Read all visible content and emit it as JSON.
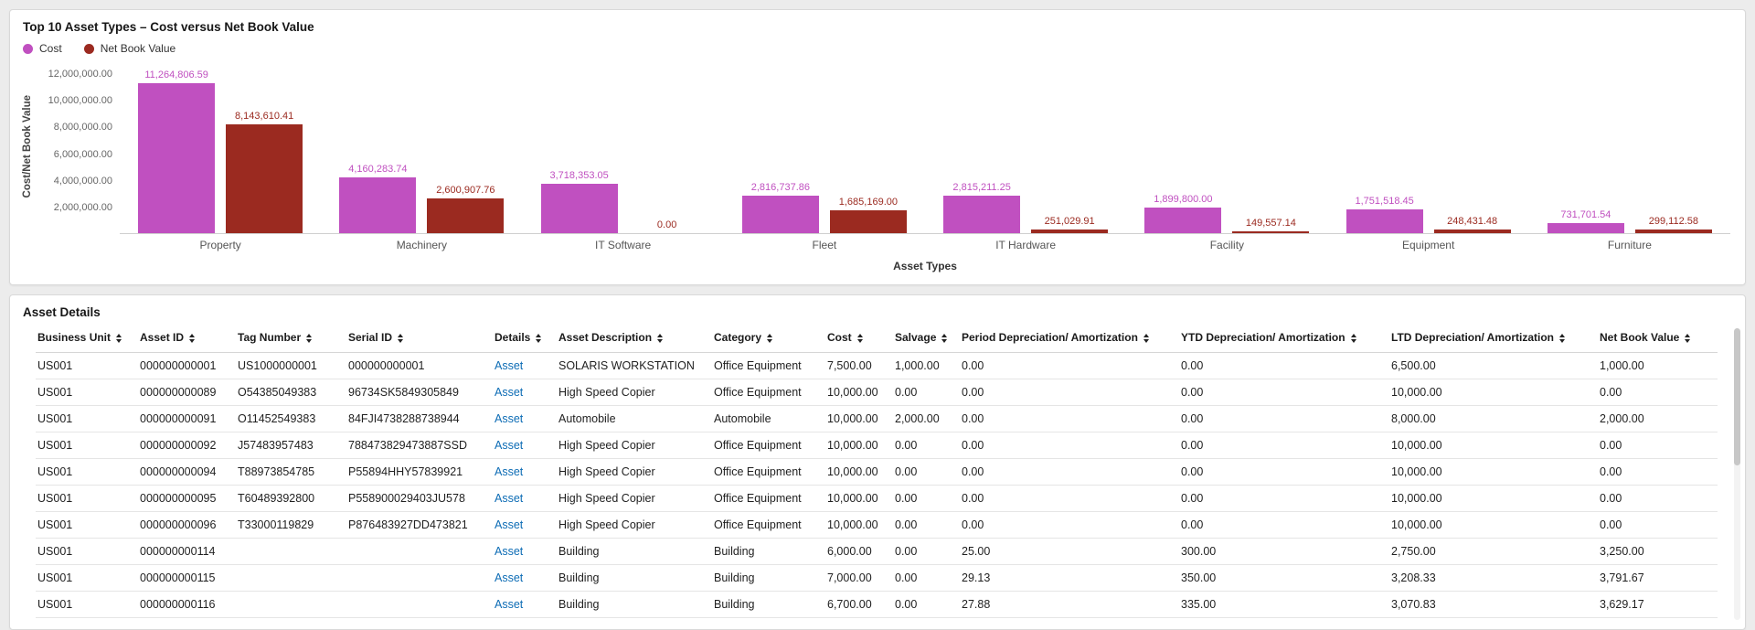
{
  "chart_panel": {
    "title": "Top 10 Asset Types – Cost versus Net Book Value",
    "legend": [
      {
        "label": "Cost",
        "color": "#c050c0"
      },
      {
        "label": "Net Book Value",
        "color": "#9b2a20"
      }
    ],
    "chart_data": {
      "type": "bar",
      "title": "Top 10 Asset Types – Cost versus Net Book Value",
      "xlabel": "Asset Types",
      "ylabel": "Cost/Net Book Value",
      "ylim": [
        0,
        12000000
      ],
      "grid": false,
      "legend_position": "top-left",
      "ytick_values": [
        12000000,
        10000000,
        8000000,
        6000000,
        4000000,
        2000000
      ],
      "ytick_labels": [
        "12,000,000.00",
        "10,000,000.00",
        "8,000,000.00",
        "6,000,000.00",
        "4,000,000.00",
        "2,000,000.00"
      ],
      "categories": [
        "Property",
        "Machinery",
        "IT Software",
        "Fleet",
        "IT Hardware",
        "Facility",
        "Equipment",
        "Furniture"
      ],
      "series": [
        {
          "name": "Cost",
          "color": "#c050c0",
          "values": [
            11264806.59,
            4160283.74,
            3718353.05,
            2816737.86,
            2815211.25,
            1899800.0,
            1751518.45,
            731701.54
          ],
          "labels": [
            "11,264,806.59",
            "4,160,283.74",
            "3,718,353.05",
            "2,816,737.86",
            "2,815,211.25",
            "1,899,800.00",
            "1,751,518.45",
            "731,701.54"
          ]
        },
        {
          "name": "Net Book Value",
          "color": "#9b2a20",
          "values": [
            8143610.41,
            2600907.76,
            0.0,
            1685169.0,
            251029.91,
            149557.14,
            248431.48,
            299112.58
          ],
          "labels": [
            "8,143,610.41",
            "2,600,907.76",
            "0.00",
            "1,685,169.00",
            "251,029.91",
            "149,557.14",
            "248,431.48",
            "299,112.58"
          ]
        }
      ]
    }
  },
  "table_panel": {
    "title": "Asset Details",
    "columns": [
      "Business Unit",
      "Asset ID",
      "Tag Number",
      "Serial ID",
      "Details",
      "Asset Description",
      "Category",
      "Cost",
      "Salvage",
      "Period Depreciation/ Amortization",
      "YTD Depreciation/ Amortization",
      "LTD Depreciation/ Amortization",
      "Net Book Value"
    ],
    "link_column_index": 4,
    "rows": [
      [
        "US001",
        "000000000001",
        "US1000000001",
        "000000000001",
        "Asset",
        "SOLARIS WORKSTATION",
        "Office Equipment",
        "7,500.00",
        "1,000.00",
        "0.00",
        "0.00",
        "6,500.00",
        "1,000.00"
      ],
      [
        "US001",
        "000000000089",
        "O54385049383",
        "96734SK5849305849",
        "Asset",
        "High Speed Copier",
        "Office Equipment",
        "10,000.00",
        "0.00",
        "0.00",
        "0.00",
        "10,000.00",
        "0.00"
      ],
      [
        "US001",
        "000000000091",
        "O11452549383",
        "84FJI4738288738944",
        "Asset",
        "Automobile",
        "Automobile",
        "10,000.00",
        "2,000.00",
        "0.00",
        "0.00",
        "8,000.00",
        "2,000.00"
      ],
      [
        "US001",
        "000000000092",
        "J57483957483",
        "788473829473887SSD",
        "Asset",
        "High Speed Copier",
        "Office Equipment",
        "10,000.00",
        "0.00",
        "0.00",
        "0.00",
        "10,000.00",
        "0.00"
      ],
      [
        "US001",
        "000000000094",
        "T88973854785",
        "P55894HHY57839921",
        "Asset",
        "High Speed Copier",
        "Office Equipment",
        "10,000.00",
        "0.00",
        "0.00",
        "0.00",
        "10,000.00",
        "0.00"
      ],
      [
        "US001",
        "000000000095",
        "T60489392800",
        "P558900029403JU578",
        "Asset",
        "High Speed Copier",
        "Office Equipment",
        "10,000.00",
        "0.00",
        "0.00",
        "0.00",
        "10,000.00",
        "0.00"
      ],
      [
        "US001",
        "000000000096",
        "T33000119829",
        "P876483927DD473821",
        "Asset",
        "High Speed Copier",
        "Office Equipment",
        "10,000.00",
        "0.00",
        "0.00",
        "0.00",
        "10,000.00",
        "0.00"
      ],
      [
        "US001",
        "000000000114",
        "",
        "",
        "Asset",
        "Building",
        "Building",
        "6,000.00",
        "0.00",
        "25.00",
        "300.00",
        "2,750.00",
        "3,250.00"
      ],
      [
        "US001",
        "000000000115",
        "",
        "",
        "Asset",
        "Building",
        "Building",
        "7,000.00",
        "0.00",
        "29.13",
        "350.00",
        "3,208.33",
        "3,791.67"
      ],
      [
        "US001",
        "000000000116",
        "",
        "",
        "Asset",
        "Building",
        "Building",
        "6,700.00",
        "0.00",
        "27.88",
        "335.00",
        "3,070.83",
        "3,629.17"
      ]
    ]
  }
}
